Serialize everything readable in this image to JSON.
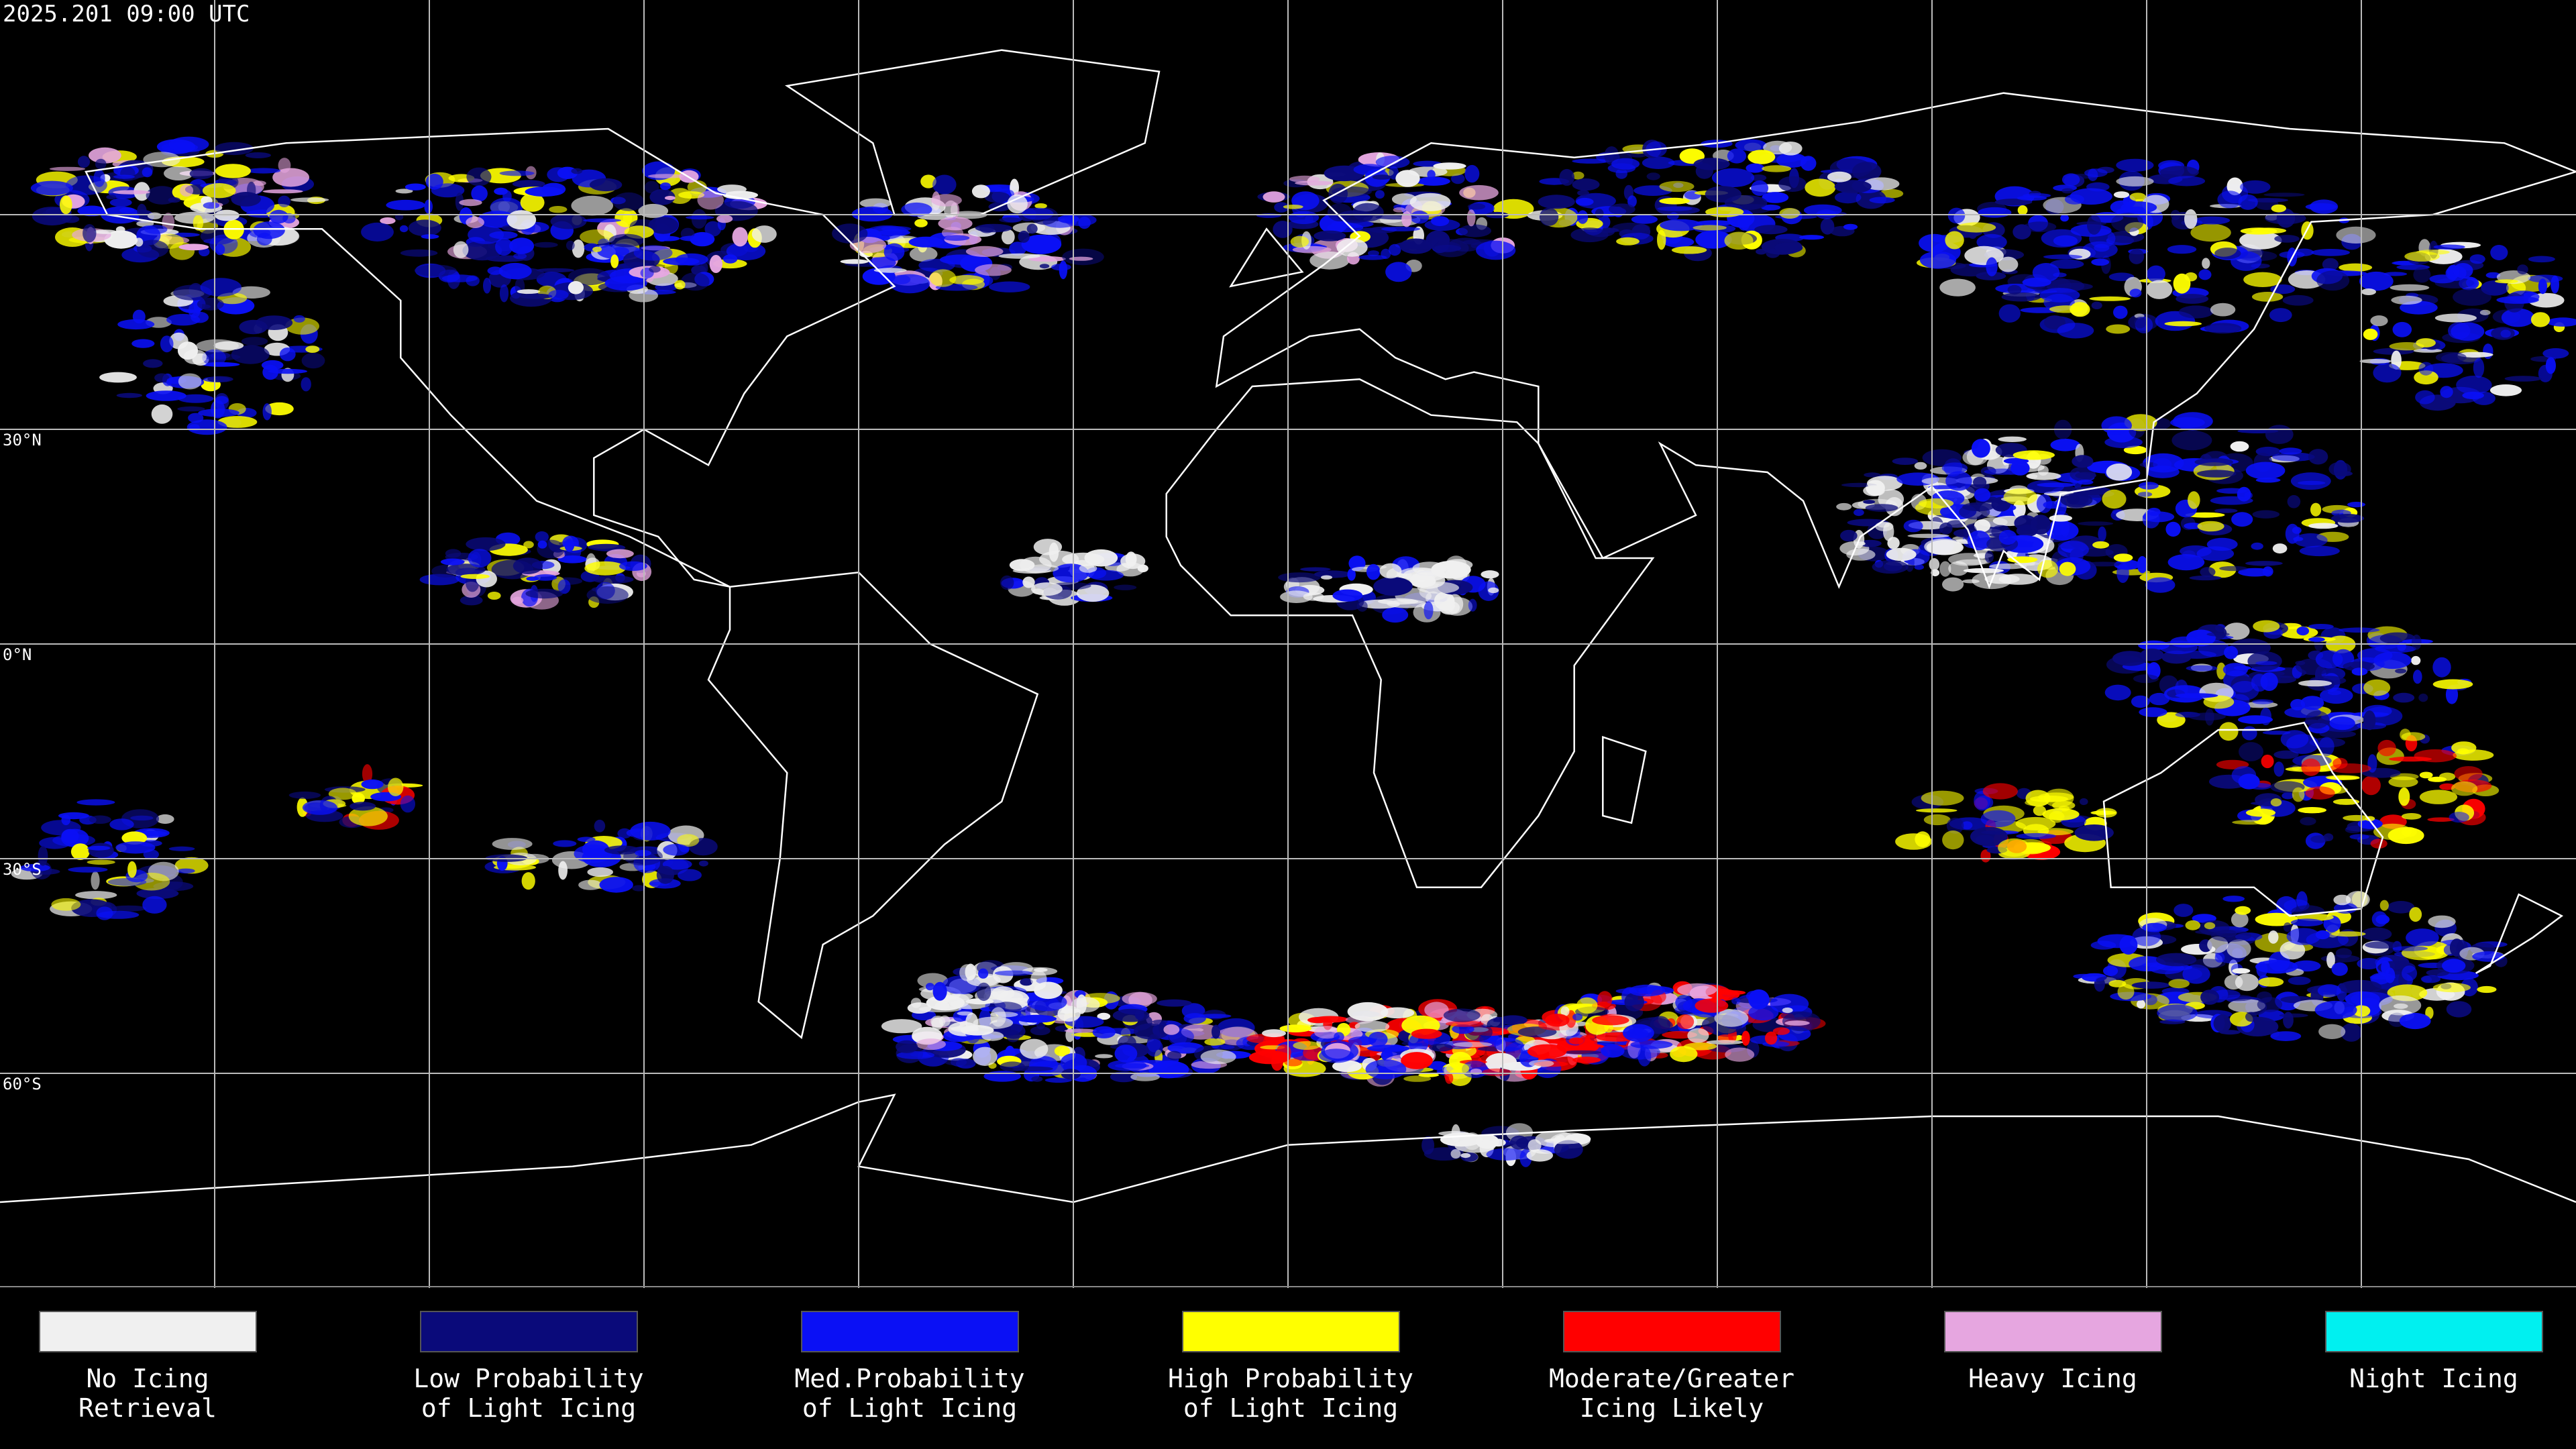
{
  "header": {
    "title": "2025.201 09:00 UTC"
  },
  "map": {
    "latitude_labels": [
      "30°N",
      "0°N",
      "30°S",
      "60°S"
    ]
  },
  "legend": {
    "items": [
      {
        "label": [
          "No Icing",
          "Retrieval"
        ],
        "color": "#f0f0f0"
      },
      {
        "label": [
          "Low Probability",
          "of Light Icing"
        ],
        "color": "#0a0a7a"
      },
      {
        "label": [
          "Med.Probability",
          "of Light Icing"
        ],
        "color": "#0a10f5"
      },
      {
        "label": [
          "High Probability",
          "of Light Icing"
        ],
        "color": "#ffff00"
      },
      {
        "label": [
          "Moderate/Greater",
          "Icing Likely"
        ],
        "color": "#ff0000"
      },
      {
        "label": [
          "Heavy Icing"
        ],
        "color": "#e6a6e0"
      },
      {
        "label": [
          "Night Icing"
        ],
        "color": "#00f0f0"
      }
    ]
  }
}
